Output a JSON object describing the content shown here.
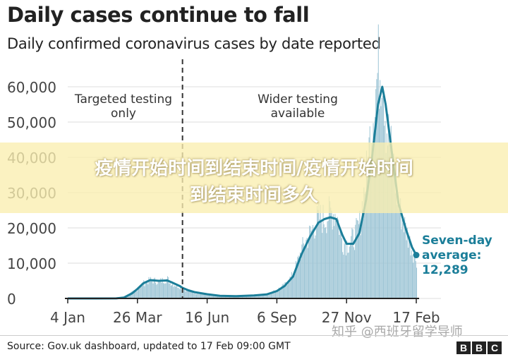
{
  "header": {
    "title": "Daily cases continue to fall",
    "subtitle": "Daily confirmed coronavirus cases by date reported"
  },
  "overlay": {
    "line1": "疫情开始时间到结束时间/疫情开始时间",
    "line2": "到结束时间多久"
  },
  "footer": {
    "source": "Source: Gov.uk dashboard, updated to 17 Feb 09:00 GMT",
    "watermark": "知乎 @西班牙留学导师",
    "logo_letters": [
      "B",
      "B",
      "C"
    ]
  },
  "colors": {
    "bars": "#9fc6d6",
    "line": "#1b7e99",
    "axis": "#222222",
    "grid": "#dcdcdc",
    "divider": "#333333"
  },
  "chart_data": {
    "type": "bar",
    "title": "Daily cases continue to fall",
    "subtitle": "Daily confirmed coronavirus cases by date reported",
    "x_ticks": [
      "4 Jan",
      "26 Mar",
      "16 Jun",
      "6 Sep",
      "27 Nov",
      "17 Feb"
    ],
    "y_ticks": [
      "0",
      "10,000",
      "20,000",
      "30,000",
      "40,000",
      "50,000",
      "60,000"
    ],
    "ylim": [
      0,
      70000
    ],
    "grid": true,
    "annotations": [
      {
        "text": [
          "Targeted testing",
          "only"
        ],
        "at_date": "2020-05-18"
      },
      {
        "text": [
          "Wider testing",
          "available"
        ],
        "at_date": "2020-10-15"
      }
    ],
    "divider_date": "2020-05-18",
    "series": [
      {
        "kind": "bars",
        "values_by_date": [
          [
            "2020-01-04",
            0
          ],
          [
            "2020-02-04",
            0
          ],
          [
            "2020-03-01",
            50
          ],
          [
            "2020-03-10",
            300
          ],
          [
            "2020-03-20",
            1800
          ],
          [
            "2020-03-26",
            2800
          ],
          [
            "2020-04-02",
            4300
          ],
          [
            "2020-04-10",
            5200
          ],
          [
            "2020-04-20",
            4800
          ],
          [
            "2020-04-30",
            5500
          ],
          [
            "2020-05-05",
            4200
          ],
          [
            "2020-05-15",
            3300
          ],
          [
            "2020-05-18",
            2800
          ],
          [
            "2020-05-25",
            2100
          ],
          [
            "2020-06-01",
            1600
          ],
          [
            "2020-06-16",
            1200
          ],
          [
            "2020-07-01",
            800
          ],
          [
            "2020-07-20",
            650
          ],
          [
            "2020-08-10",
            850
          ],
          [
            "2020-08-25",
            1100
          ],
          [
            "2020-09-06",
            2500
          ],
          [
            "2020-09-15",
            3800
          ],
          [
            "2020-09-25",
            6800
          ],
          [
            "2020-10-05",
            14000
          ],
          [
            "2020-10-15",
            18500
          ],
          [
            "2020-10-25",
            23000
          ],
          [
            "2020-11-01",
            22500
          ],
          [
            "2020-11-08",
            24500
          ],
          [
            "2020-11-15",
            24000
          ],
          [
            "2020-11-22",
            16000
          ],
          [
            "2020-11-27",
            15500
          ],
          [
            "2020-12-05",
            17000
          ],
          [
            "2020-12-12",
            21000
          ],
          [
            "2020-12-20",
            35000
          ],
          [
            "2020-12-27",
            52000
          ],
          [
            "2021-01-03",
            65000
          ],
          [
            "2021-01-08",
            68000
          ],
          [
            "2021-01-12",
            50000
          ],
          [
            "2021-01-20",
            39000
          ],
          [
            "2021-01-27",
            26000
          ],
          [
            "2021-02-05",
            19000
          ],
          [
            "2021-02-12",
            13500
          ],
          [
            "2021-02-17",
            11000
          ]
        ]
      },
      {
        "name": "Seven-day average",
        "kind": "line",
        "label": [
          "Seven-day",
          "average:",
          "12,289"
        ],
        "values_by_date": [
          [
            "2020-01-04",
            0
          ],
          [
            "2020-02-04",
            0
          ],
          [
            "2020-03-01",
            30
          ],
          [
            "2020-03-10",
            250
          ],
          [
            "2020-03-20",
            1500
          ],
          [
            "2020-03-26",
            2700
          ],
          [
            "2020-04-02",
            4300
          ],
          [
            "2020-04-10",
            5200
          ],
          [
            "2020-04-20",
            5000
          ],
          [
            "2020-04-30",
            5100
          ],
          [
            "2020-05-05",
            4600
          ],
          [
            "2020-05-15",
            3500
          ],
          [
            "2020-05-18",
            3000
          ],
          [
            "2020-05-25",
            2300
          ],
          [
            "2020-06-01",
            1800
          ],
          [
            "2020-06-16",
            1200
          ],
          [
            "2020-07-01",
            750
          ],
          [
            "2020-07-20",
            650
          ],
          [
            "2020-08-10",
            850
          ],
          [
            "2020-08-25",
            1150
          ],
          [
            "2020-09-06",
            2100
          ],
          [
            "2020-09-15",
            3500
          ],
          [
            "2020-09-25",
            6200
          ],
          [
            "2020-10-05",
            12500
          ],
          [
            "2020-10-15",
            17500
          ],
          [
            "2020-10-25",
            21500
          ],
          [
            "2020-11-01",
            22500
          ],
          [
            "2020-11-08",
            23000
          ],
          [
            "2020-11-15",
            22500
          ],
          [
            "2020-11-22",
            18000
          ],
          [
            "2020-11-27",
            15500
          ],
          [
            "2020-12-05",
            15500
          ],
          [
            "2020-12-12",
            18500
          ],
          [
            "2020-12-20",
            28000
          ],
          [
            "2020-12-27",
            40000
          ],
          [
            "2021-01-03",
            55000
          ],
          [
            "2021-01-08",
            60000
          ],
          [
            "2021-01-12",
            55000
          ],
          [
            "2021-01-20",
            40000
          ],
          [
            "2021-01-27",
            27000
          ],
          [
            "2021-02-05",
            19500
          ],
          [
            "2021-02-12",
            14500
          ],
          [
            "2021-02-17",
            12289
          ]
        ]
      }
    ]
  }
}
